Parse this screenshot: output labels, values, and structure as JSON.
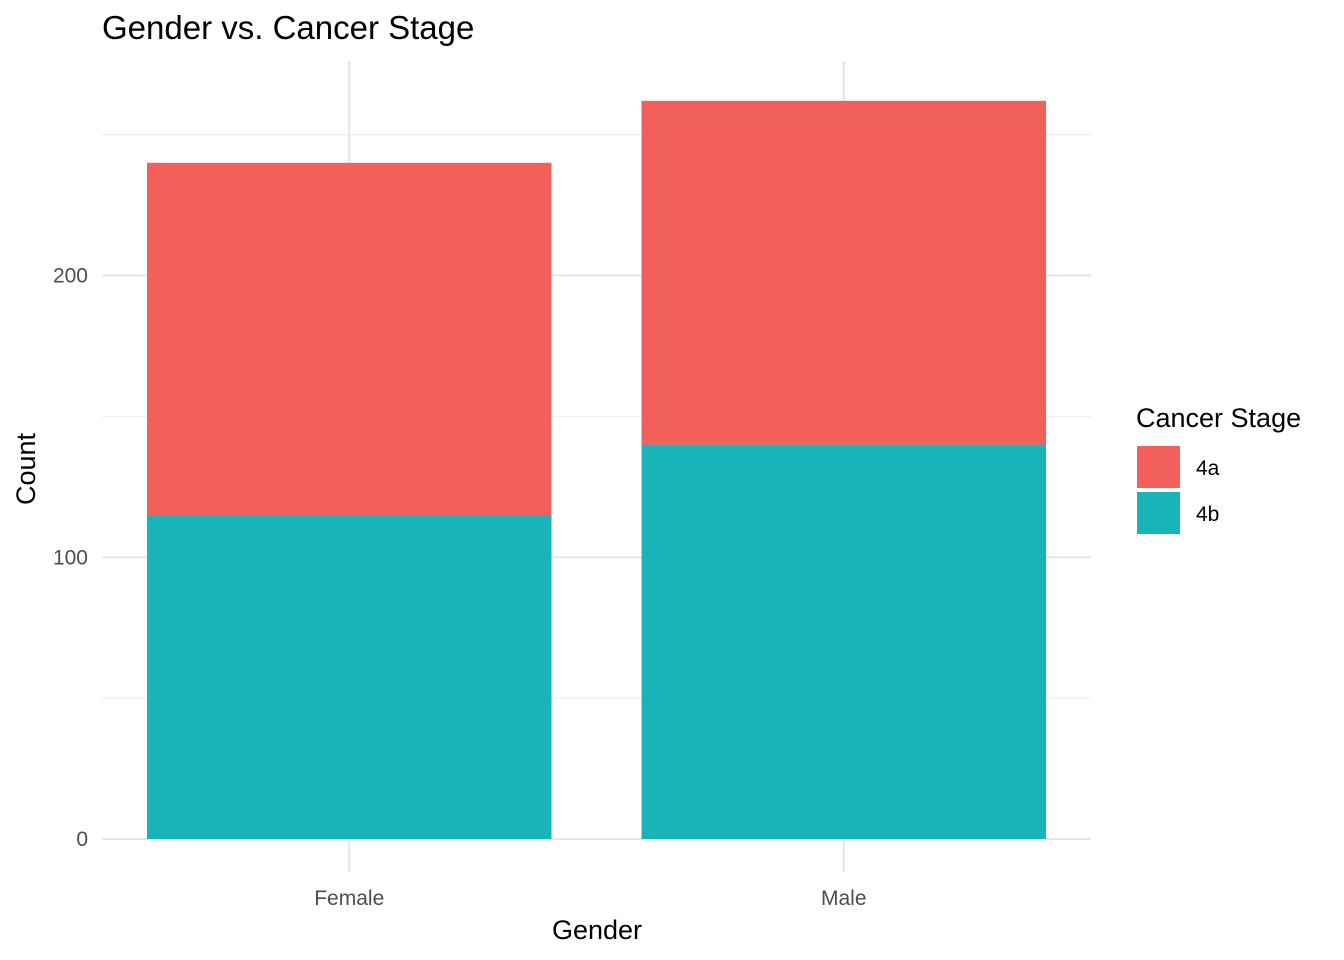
{
  "chart_data": {
    "type": "bar",
    "stacked": true,
    "title": "Gender vs. Cancer Stage",
    "xlabel": "Gender",
    "ylabel": "Count",
    "categories": [
      "Female",
      "Male"
    ],
    "series": [
      {
        "name": "4b",
        "values": [
          115,
          140
        ],
        "color": "#19B4B8"
      },
      {
        "name": "4a",
        "values": [
          125,
          122
        ],
        "color": "#F2605C"
      }
    ],
    "ylim": [
      0,
      275
    ],
    "yticks": [
      0,
      100,
      200
    ],
    "y_minor_ticks": [
      50,
      150,
      250
    ],
    "grid": true,
    "legend": {
      "title": "Cancer Stage",
      "placement": "right",
      "entries": [
        {
          "label": "4a",
          "color": "#F2605C"
        },
        {
          "label": "4b",
          "color": "#19B4B8"
        }
      ]
    }
  }
}
